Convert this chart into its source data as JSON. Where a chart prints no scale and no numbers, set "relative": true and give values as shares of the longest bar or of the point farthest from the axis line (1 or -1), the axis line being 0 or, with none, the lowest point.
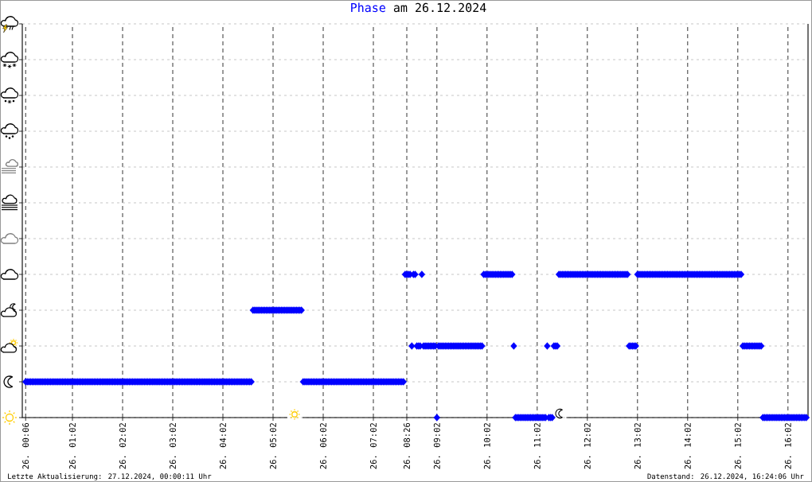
{
  "chart_data": {
    "type": "scatter",
    "title": "Phase am 26.12.2024",
    "relative": true,
    "grid": true,
    "marker": "diamond",
    "color": "#0000ff",
    "categories": [
      "26. 00:06",
      null,
      null,
      null,
      null,
      null,
      null,
      null,
      null,
      null,
      null,
      null,
      null,
      null,
      null,
      null,
      null,
      null,
      null,
      null,
      null,
      null,
      null,
      null,
      null,
      null,
      null,
      null,
      "26. 01:02",
      null,
      null,
      null,
      null,
      null,
      null,
      null,
      null,
      null,
      null,
      null,
      null,
      null,
      null,
      null,
      null,
      null,
      null,
      null,
      null,
      null,
      null,
      null,
      null,
      null,
      null,
      null,
      null,
      null,
      "26. 02:02",
      null,
      null,
      null,
      null,
      null,
      null,
      null,
      null,
      null,
      null,
      null,
      null,
      null,
      null,
      null,
      null,
      null,
      null,
      null,
      null,
      null,
      null,
      null,
      null,
      null,
      null,
      null,
      null,
      null,
      "26. 03:02",
      null,
      null,
      null,
      null,
      null,
      null,
      null,
      null,
      null,
      null,
      null,
      null,
      null,
      null,
      null,
      null,
      null,
      null,
      null,
      null,
      null,
      null,
      null,
      null,
      null,
      null,
      null,
      null,
      null,
      "26. 04:02",
      null,
      null,
      null,
      null,
      null,
      null,
      null,
      null,
      null,
      null,
      null,
      null,
      null,
      null,
      null,
      null,
      null,
      null,
      null,
      null,
      null,
      null,
      null,
      null,
      null,
      null,
      null,
      null,
      null,
      "26. 05:02",
      null,
      null,
      null,
      null,
      null,
      null,
      null,
      null,
      null,
      null,
      null,
      null,
      null,
      null,
      null,
      null,
      null,
      null,
      null,
      null,
      null,
      null,
      null,
      null,
      null,
      null,
      null,
      null,
      null,
      "26. 06:02",
      null,
      null,
      null,
      null,
      null,
      null,
      null,
      null,
      null,
      null,
      null,
      null,
      null,
      null,
      null,
      null,
      null,
      null,
      null,
      null,
      null,
      null,
      null,
      null,
      null,
      null,
      null,
      null,
      null,
      "26. 07:02",
      null,
      null,
      null,
      null,
      null,
      null,
      null,
      null,
      null,
      null,
      null,
      null,
      null,
      null,
      null,
      null,
      null,
      null,
      null,
      "26. 08:26",
      null,
      null,
      null,
      null,
      null,
      null,
      null,
      null,
      null,
      null,
      null,
      null,
      null,
      null,
      null,
      null,
      null,
      "26. 09:02",
      null,
      null,
      null,
      null,
      null,
      null,
      null,
      null,
      null,
      null,
      null,
      null,
      null,
      null,
      null,
      null,
      null,
      null,
      null,
      null,
      null,
      null,
      null,
      null,
      null,
      null,
      null,
      null,
      null,
      "26. 10:02",
      null,
      null,
      null,
      null,
      null,
      null,
      null,
      null,
      null,
      null,
      null,
      null,
      null,
      null,
      null,
      null,
      null,
      null,
      null,
      null,
      null,
      null,
      null,
      null,
      null,
      null,
      null,
      null,
      null,
      "26. 11:02",
      null,
      null,
      null,
      null,
      null,
      null,
      null,
      null,
      null,
      null,
      null,
      null,
      null,
      null,
      null,
      null,
      null,
      null,
      null,
      null,
      null,
      null,
      null,
      null,
      null,
      null,
      null,
      null,
      null,
      "26. 12:02",
      null,
      null,
      null,
      null,
      null,
      null,
      null,
      null,
      null,
      null,
      null,
      null,
      null,
      null,
      null,
      null,
      null,
      null,
      null,
      null,
      null,
      null,
      null,
      null,
      null,
      null,
      null,
      null,
      null,
      "26. 13:02",
      null,
      null,
      null,
      null,
      null,
      null,
      null,
      null,
      null,
      null,
      null,
      null,
      null,
      null,
      null,
      null,
      null,
      null,
      null,
      null,
      null,
      null,
      null,
      null,
      null,
      null,
      null,
      null,
      null,
      "26. 14:02",
      null,
      null,
      null,
      null,
      null,
      null,
      null,
      null,
      null,
      null,
      null,
      null,
      null,
      null,
      null,
      null,
      null,
      null,
      null,
      null,
      null,
      null,
      null,
      null,
      null,
      null,
      null,
      null,
      null,
      "26. 15:02",
      null,
      null,
      null,
      null,
      null,
      null,
      null,
      null,
      null,
      null,
      null,
      null,
      null,
      null,
      null,
      null,
      null,
      null,
      null,
      null,
      null,
      null,
      null,
      null,
      null,
      null,
      null,
      null,
      null,
      "26. 16:02",
      null,
      null,
      null,
      null,
      null,
      null,
      null,
      null,
      null,
      null,
      null
    ],
    "values": [
      0.25,
      0.25,
      0.25,
      0.25,
      0.25,
      0.25,
      0.25,
      0.25,
      0.25,
      0.25,
      0.25,
      0.25,
      0.25,
      0.25,
      0.25,
      0.25,
      0.25,
      0.25,
      0.25,
      0.25,
      0.25,
      0.25,
      0.25,
      0.25,
      0.25,
      0.25,
      0.25,
      0.25,
      0.25,
      0.25,
      0.25,
      0.25,
      0.25,
      0.25,
      0.25,
      0.25,
      0.25,
      0.25,
      0.25,
      0.25,
      0.25,
      0.25,
      0.25,
      0.25,
      0.25,
      0.25,
      0.25,
      0.25,
      0.25,
      0.25,
      0.25,
      0.25,
      0.25,
      0.25,
      0.25,
      0.25,
      0.25,
      0.25,
      0.25,
      0.25,
      0.25,
      0.25,
      0.25,
      0.25,
      0.25,
      0.25,
      0.25,
      0.25,
      0.25,
      0.25,
      0.25,
      0.25,
      0.25,
      0.25,
      0.25,
      0.25,
      0.25,
      0.25,
      0.25,
      0.25,
      0.25,
      0.25,
      0.25,
      0.25,
      0.25,
      0.25,
      0.25,
      0.25,
      0.25,
      0.25,
      0.25,
      0.25,
      0.25,
      0.25,
      0.25,
      0.25,
      0.25,
      0.25,
      0.25,
      0.25,
      0.25,
      0.25,
      0.25,
      0.25,
      0.25,
      0.25,
      0.25,
      0.25,
      0.25,
      0.25,
      0.25,
      0.25,
      0.25,
      0.25,
      0.25,
      0.25,
      0.25,
      0.25,
      0.25,
      0.25,
      0.25,
      0.25,
      0.25,
      0.25,
      0.25,
      0.25,
      0.25,
      0.25,
      0.25,
      0.25,
      0.25,
      0.25,
      0.25,
      0.25,
      0.25,
      0.25,
      0.75,
      0.75,
      0.75,
      0.75,
      0.75,
      0.75,
      0.75,
      0.75,
      0.75,
      0.75,
      0.75,
      0.75,
      0.75,
      0.75,
      0.75,
      0.75,
      0.75,
      0.75,
      0.75,
      0.75,
      0.75,
      0.75,
      0.75,
      0.75,
      0.75,
      0.75,
      0.75,
      0.75,
      0.75,
      0.75,
      0.25,
      0.25,
      0.25,
      0.25,
      0.25,
      0.25,
      0.25,
      0.25,
      0.25,
      0.25,
      0.25,
      0.25,
      0.25,
      0.25,
      0.25,
      0.25,
      0.25,
      0.25,
      0.25,
      0.25,
      0.25,
      0.25,
      0.25,
      0.25,
      0.25,
      0.25,
      0.25,
      0.25,
      0.25,
      0.25,
      0.25,
      0.25,
      0.25,
      0.25,
      0.25,
      0.25,
      0.25,
      0.25,
      0.25,
      0.25,
      0.25,
      0.25,
      0.25,
      0.25,
      0.25,
      0.25,
      0.25,
      0.25,
      0.25,
      0.25,
      0.25,
      0.25,
      0.25,
      0.25,
      0.25,
      0.25,
      0.25,
      0.25,
      0.25,
      0.25,
      0.25,
      1,
      1,
      1,
      1,
      0.5,
      1,
      1,
      0.5,
      0.5,
      0.5,
      1,
      0.5,
      0.5,
      0.5,
      0.5,
      0.5,
      0.5,
      0.5,
      0.5,
      0,
      0.5,
      0.5,
      0.5,
      0.5,
      0.5,
      0.5,
      0.5,
      0.5,
      0.5,
      0.5,
      0.5,
      0.5,
      0.5,
      0.5,
      0.5,
      0.5,
      0.5,
      0.5,
      0.5,
      0.5,
      0.5,
      0.5,
      0.5,
      0.5,
      0.5,
      0.5,
      0.5,
      1,
      1,
      1,
      1,
      1,
      1,
      1,
      1,
      1,
      1,
      1,
      1,
      1,
      1,
      1,
      1,
      1,
      1,
      0.5,
      0,
      0,
      0,
      0,
      0,
      0,
      0,
      0,
      0,
      0,
      0,
      0,
      0,
      0,
      0,
      0,
      0,
      0,
      0,
      0.5,
      0,
      0,
      0,
      0.5,
      0.5,
      0.5,
      1,
      1,
      1,
      1,
      1,
      1,
      1,
      1,
      1,
      1,
      1,
      1,
      1,
      1,
      1,
      1,
      1,
      1,
      1,
      1,
      1,
      1,
      1,
      1,
      1,
      1,
      1,
      1,
      1,
      1,
      1,
      1,
      1,
      1,
      1,
      1,
      1,
      1,
      1,
      1,
      1,
      1,
      0.5,
      0.5,
      0.5,
      0.5,
      0.5,
      1,
      1,
      1,
      1,
      1,
      1,
      1,
      1,
      1,
      1,
      1,
      1,
      1,
      1,
      1,
      1,
      1,
      1,
      1,
      1,
      1,
      1,
      1,
      1,
      1,
      1,
      1,
      1,
      1,
      1,
      1,
      1,
      1,
      1,
      1,
      1,
      1,
      1,
      1,
      1,
      1,
      1,
      1,
      1,
      1,
      1,
      1,
      1,
      1,
      1,
      1,
      1,
      1,
      1,
      1,
      1,
      1,
      1,
      1,
      1,
      1,
      1,
      1,
      0.5,
      0.5,
      0.5,
      0.5,
      0.5,
      0.5,
      0.5,
      0.5,
      0.5,
      0.5,
      0.5,
      0.5,
      0,
      0,
      0,
      0,
      0,
      0,
      0,
      0,
      0,
      0,
      0,
      0,
      0,
      0,
      0,
      0,
      0,
      0,
      0,
      0,
      0,
      0,
      0,
      0,
      0,
      0,
      0
    ],
    "annotations": [
      "Letzte Aktualisierung: 27.12.2024, 00:00:11 Uhr",
      "Datenstand: 26.12.2024, 16:24:06 Uhr"
    ]
  }
}
